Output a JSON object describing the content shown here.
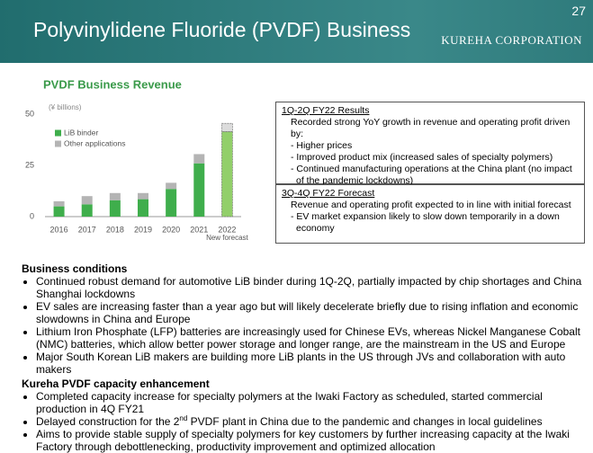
{
  "header": {
    "title": "Polyvinylidene Fluoride (PVDF) Business",
    "page": "27",
    "company": "KUREHA CORPORATION"
  },
  "chart_data": {
    "type": "bar",
    "stacked": true,
    "title": "PVDF Business Revenue",
    "unit_label": "(¥ billions)",
    "categories": [
      "2016",
      "2017",
      "2018",
      "2019",
      "2020",
      "2021",
      "2022"
    ],
    "x_note": "New forecast",
    "series": [
      {
        "name": "LiB binder",
        "color": "#3fae4c",
        "colors": [
          "#3fae4c",
          "#3fae4c",
          "#3fae4c",
          "#3fae4c",
          "#3fae4c",
          "#3fae4c",
          "#92cf6a"
        ],
        "values": [
          5,
          6,
          8,
          8.5,
          13.5,
          26,
          41.5
        ]
      },
      {
        "name": "Other applications",
        "color": "#b4b4b4",
        "colors": [
          "#b4b4b4",
          "#b4b4b4",
          "#b4b4b4",
          "#b4b4b4",
          "#b4b4b4",
          "#b4b4b4",
          "#dcdcdc"
        ],
        "values": [
          2.5,
          4,
          3.5,
          3,
          3,
          4.5,
          4
        ]
      }
    ],
    "ylim": [
      0,
      50
    ],
    "yticks": [
      0,
      25,
      50
    ],
    "legend": "top-left"
  },
  "results": {
    "heading": "1Q-2Q FY22 Results",
    "lead": "Recorded strong YoY growth in revenue and operating profit driven by:",
    "items": [
      "- Higher prices",
      "- Improved  product mix (increased sales of specialty polymers)",
      "- Continued manufacturing operations at the China plant (no impact of the pandemic lockdowns)"
    ]
  },
  "forecast": {
    "heading": "3Q-4Q FY22 Forecast",
    "lead": "Revenue and operating profit expected to in line with initial forecast",
    "items": [
      "- EV market expansion likely to slow down temporarily in a down economy"
    ]
  },
  "conditions": {
    "heading": "Business conditions",
    "items": [
      "Continued robust demand for automotive LiB binder during 1Q-2Q, partially impacted by chip shortages and China Shanghai lockdowns",
      "EV sales are increasing faster than a year ago but will likely decelerate briefly due to rising inflation and economic slowdowns in China and Europe",
      "Lithium Iron Phosphate (LFP) batteries are increasingly used for Chinese EVs, whereas Nickel Manganese Cobalt (NMC) batteries, which allow better power storage and longer range, are the mainstream in the US and Europe",
      "Major South Korean LiB makers are building more LiB plants in the US through JVs and collaboration with auto makers"
    ]
  },
  "capacity": {
    "heading": "Kureha PVDF capacity enhancement",
    "items": [
      "Completed capacity increase for specialty polymers at the Iwaki Factory as scheduled, started commercial production in 4Q FY21",
      {
        "before": "Delayed construction for the 2",
        "sup": "nd",
        "after": " PVDF plant in China due to the pandemic and changes in local guidelines"
      },
      "Aims to provide stable supply of specialty polymers for key customers by further increasing capacity at the Iwaki Factory through debottlenecking, productivity improvement and optimized allocation"
    ]
  }
}
